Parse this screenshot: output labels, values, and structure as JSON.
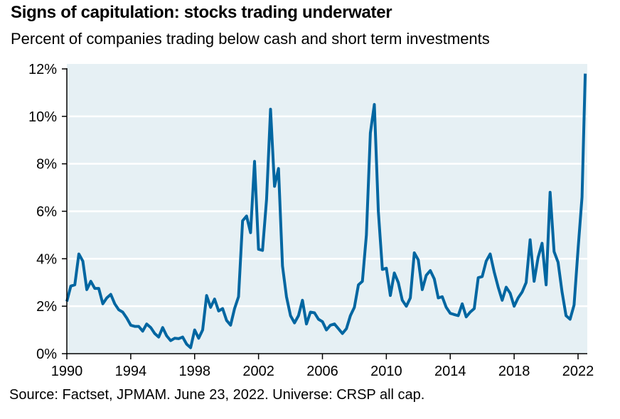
{
  "title": "Signs of capitulation: stocks trading underwater",
  "subtitle": "Percent of companies trading below cash and short term investments",
  "source": "Source: Factset, JPMAM. June 23, 2022. Universe: CRSP all cap.",
  "colors": {
    "line": "#0066A1",
    "plot_background": "#E6F0F4",
    "gridline": "#FFFFFF",
    "axis": "#000000"
  },
  "chart_data": {
    "type": "line",
    "title": "Signs of capitulation: stocks trading underwater",
    "subtitle": "Percent of companies trading below cash and short term investments",
    "xlabel": "",
    "ylabel": "",
    "xlim": [
      1990,
      2022.6
    ],
    "ylim": [
      0,
      12
    ],
    "grid": "horizontal",
    "legend": "none",
    "x_ticks": [
      1990,
      1994,
      1998,
      2002,
      2006,
      2010,
      2014,
      2018,
      2022
    ],
    "x_tick_labels": [
      "1990",
      "1994",
      "1998",
      "2002",
      "2006",
      "2010",
      "2014",
      "2018",
      "2022"
    ],
    "y_ticks": [
      0,
      2,
      4,
      6,
      8,
      10,
      12
    ],
    "y_tick_labels": [
      "0%",
      "2%",
      "4%",
      "6%",
      "8%",
      "10%",
      "12%"
    ],
    "series": [
      {
        "name": "Percent of companies trading below cash and short term investments",
        "x": [
          1990.0,
          1990.25,
          1990.5,
          1990.75,
          1991.0,
          1991.25,
          1991.5,
          1991.75,
          1992.0,
          1992.25,
          1992.5,
          1992.75,
          1993.0,
          1993.25,
          1993.5,
          1993.75,
          1994.0,
          1994.25,
          1994.5,
          1994.75,
          1995.0,
          1995.25,
          1995.5,
          1995.75,
          1996.0,
          1996.25,
          1996.5,
          1996.75,
          1997.0,
          1997.25,
          1997.5,
          1997.75,
          1998.0,
          1998.25,
          1998.5,
          1998.75,
          1999.0,
          1999.25,
          1999.5,
          1999.75,
          2000.0,
          2000.25,
          2000.5,
          2000.75,
          2001.0,
          2001.25,
          2001.5,
          2001.75,
          2002.0,
          2002.25,
          2002.5,
          2002.75,
          2003.0,
          2003.25,
          2003.5,
          2003.75,
          2004.0,
          2004.25,
          2004.5,
          2004.75,
          2005.0,
          2005.25,
          2005.5,
          2005.75,
          2006.0,
          2006.25,
          2006.5,
          2006.75,
          2007.0,
          2007.25,
          2007.5,
          2007.75,
          2008.0,
          2008.25,
          2008.5,
          2008.75,
          2009.0,
          2009.25,
          2009.5,
          2009.75,
          2010.0,
          2010.25,
          2010.5,
          2010.75,
          2011.0,
          2011.25,
          2011.5,
          2011.75,
          2012.0,
          2012.25,
          2012.5,
          2012.75,
          2013.0,
          2013.25,
          2013.5,
          2013.75,
          2014.0,
          2014.25,
          2014.5,
          2014.75,
          2015.0,
          2015.25,
          2015.5,
          2015.75,
          2016.0,
          2016.25,
          2016.5,
          2016.75,
          2017.0,
          2017.25,
          2017.5,
          2017.75,
          2018.0,
          2018.25,
          2018.5,
          2018.75,
          2019.0,
          2019.25,
          2019.5,
          2019.75,
          2020.0,
          2020.25,
          2020.5,
          2020.75,
          2021.0,
          2021.25,
          2021.5,
          2021.75,
          2022.0,
          2022.25,
          2022.45
        ],
        "values": [
          2.2,
          2.85,
          2.9,
          4.2,
          3.9,
          2.7,
          3.05,
          2.75,
          2.75,
          2.1,
          2.35,
          2.5,
          2.1,
          1.85,
          1.75,
          1.5,
          1.2,
          1.15,
          1.15,
          0.95,
          1.25,
          1.1,
          0.85,
          0.7,
          1.1,
          0.75,
          0.55,
          0.65,
          0.63,
          0.7,
          0.4,
          0.25,
          1.0,
          0.65,
          1.0,
          2.45,
          1.95,
          2.3,
          1.8,
          1.9,
          1.4,
          1.2,
          1.9,
          2.4,
          5.6,
          5.8,
          5.1,
          8.1,
          4.4,
          4.35,
          6.5,
          10.3,
          7.05,
          7.8,
          3.7,
          2.4,
          1.6,
          1.3,
          1.6,
          2.25,
          1.25,
          1.75,
          1.72,
          1.45,
          1.35,
          1.0,
          1.2,
          1.25,
          1.05,
          0.85,
          1.05,
          1.6,
          1.95,
          2.9,
          3.05,
          5.0,
          9.3,
          10.5,
          6.0,
          3.55,
          3.6,
          2.45,
          3.4,
          3.0,
          2.25,
          2.0,
          2.35,
          4.25,
          3.95,
          2.7,
          3.3,
          3.5,
          3.15,
          2.35,
          2.4,
          1.95,
          1.7,
          1.65,
          1.6,
          2.1,
          1.55,
          1.75,
          1.9,
          3.2,
          3.25,
          3.9,
          4.2,
          3.45,
          2.8,
          2.25,
          2.8,
          2.55,
          2.0,
          2.35,
          2.6,
          3.0,
          4.8,
          3.05,
          4.05,
          4.65,
          2.9,
          6.8,
          4.3,
          3.85,
          2.6,
          1.6,
          1.45,
          2.05,
          4.4,
          6.6,
          11.8
        ]
      }
    ]
  }
}
